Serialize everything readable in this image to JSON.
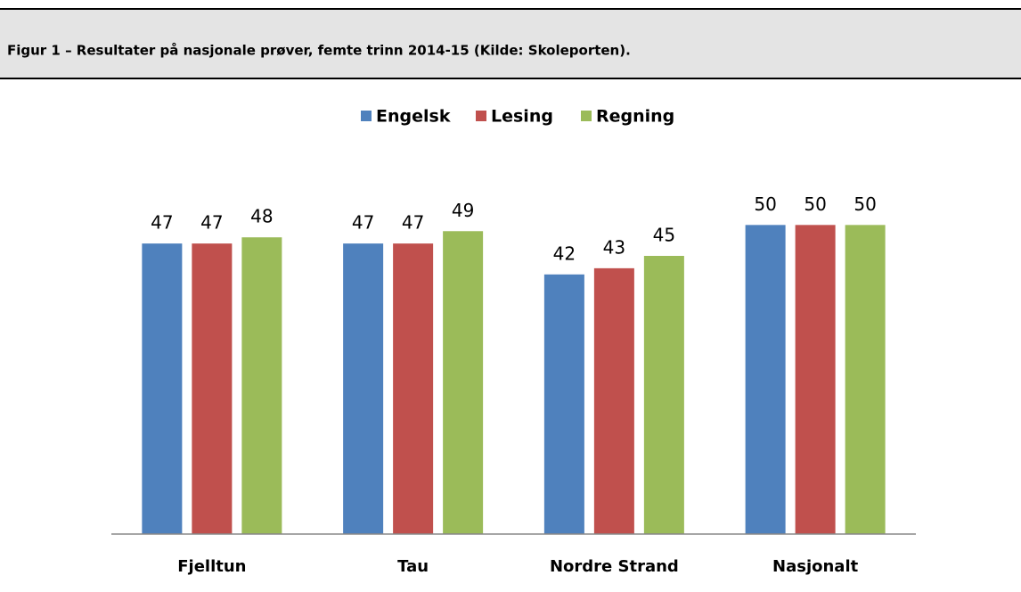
{
  "chart_data": {
    "type": "bar",
    "title": "Figur 1 – Resultater på nasjonale prøver, femte trinn 2014-15 (Kilde: Skoleporten).",
    "categories": [
      "Fjelltun",
      "Tau",
      "Nordre Strand",
      "Nasjonalt"
    ],
    "series": [
      {
        "name": "Engelsk",
        "color": "#4f81bd",
        "values": [
          47,
          47,
          42,
          50
        ]
      },
      {
        "name": "Lesing",
        "color": "#c0504d",
        "values": [
          47,
          47,
          43,
          50
        ]
      },
      {
        "name": "Regning",
        "color": "#9bbb59",
        "values": [
          48,
          49,
          45,
          50
        ]
      }
    ],
    "ylim": [
      0,
      60
    ],
    "legend": "top"
  }
}
